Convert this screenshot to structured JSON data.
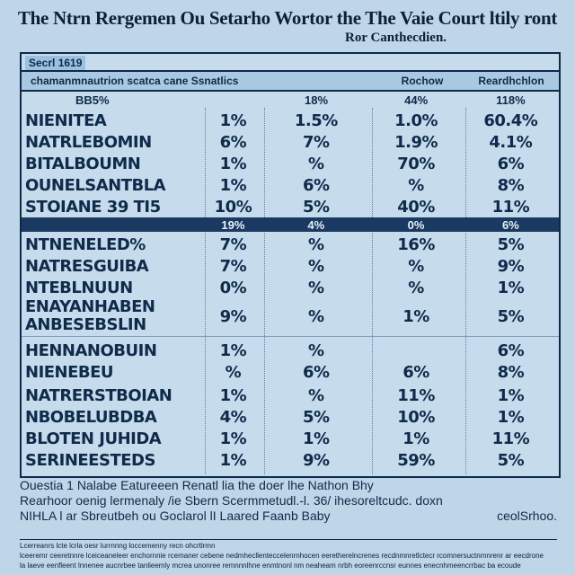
{
  "header": {
    "title": "The Ntrn Rergemen Ou Setarho Wortor the The Vaie Court ltily ront",
    "subtitle": "Ror Canthecdien."
  },
  "table": {
    "tag": "Secrl 1619",
    "columns": [
      "chamanmnautrion scatca cane Ssnatlics",
      "Rochow",
      "Reardhchlon"
    ],
    "subheader": [
      "BB5%",
      "",
      "18%",
      "44%",
      "118%"
    ],
    "rows_top": [
      {
        "label": "NIENITEA",
        "v1": "1%",
        "v2": "1.5%",
        "v3": "1.0%",
        "v4": "60.4%"
      },
      {
        "label": "NATRLEBOMIN",
        "v1": "6%",
        "v2": "7%",
        "v3": "1.9%",
        "v4": "4.1%"
      },
      {
        "label": "BITALBOUMN",
        "v1": "1%",
        "v2": "%",
        "v3": "70%",
        "v4": "6%"
      },
      {
        "label": "OUNELSANTBLA",
        "v1": "1%",
        "v2": "6%",
        "v3": "%",
        "v4": "8%"
      },
      {
        "label": "STOIANE 39 TI5",
        "v1": "10%",
        "v2": "5%",
        "v3": "40%",
        "v4": "11%"
      }
    ],
    "divider": {
      "label": "",
      "v1": "19%",
      "v2": "4%",
      "v3": "0%",
      "v4": "6%"
    },
    "rows_mid": [
      {
        "label": "NTNENELED%",
        "v1": "7%",
        "v2": "%",
        "v3": "16%",
        "v4": "5%"
      },
      {
        "label": "NATRESGUIBA",
        "v1": "7%",
        "v2": "%",
        "v3": "%",
        "v4": "9%"
      },
      {
        "label": "NTEBLNUUN",
        "v1": "0%",
        "v2": "%",
        "v3": "%",
        "v4": "1%"
      }
    ],
    "row_tall": {
      "label1": "ENAYANHABEN",
      "label2": "ANBESEBSLIN",
      "v1": "9%",
      "v2": "%",
      "v3": "1%",
      "v4": "5%"
    },
    "rows_bottom": [
      {
        "label": "HENNANOBUIN",
        "v1": "1%",
        "v2": "%",
        "v3": "",
        "v4": "6%"
      },
      {
        "label": "NIENEBEU",
        "v1": "%",
        "v2": "6%",
        "v3": "6%",
        "v4": "8%"
      },
      {
        "label": "NATRERSTBOIAN",
        "v1": "1%",
        "v2": "%",
        "v3": "11%",
        "v4": "1%"
      },
      {
        "label": "NBOBELUBDBA",
        "v1": "4%",
        "v2": "5%",
        "v3": "10%",
        "v4": "1%"
      },
      {
        "label": "BLOTEN JUHIDA",
        "v1": "1%",
        "v2": "1%",
        "v3": "1%",
        "v4": "11%"
      },
      {
        "label": "SERINEESTEDS",
        "v1": "1%",
        "v2": "9%",
        "v3": "59%",
        "v4": "5%"
      }
    ]
  },
  "notes": {
    "line1": "Ouestia 1 Nalabe Eatureeen Renatl lia the doer lhe Nathon Bhy",
    "line2": "Rearhoor oenig lermenaly /ie Sbern Scermmetudl.-l. 36/ ihesoreltcudc. doxn",
    "line3_left": "NIHLA l ar Sbreutbeh ou Goclarol lI Laared Faanb Baby",
    "line3_right": "ceolSrhoo."
  },
  "footer": {
    "lines": [
      "Lcerreanrs lcte lcrla oesr lurrnnng loccemenny recn ohcrtlrmn",
      "lceeremr ceeretnnre lceiceaneleer enchornnie rcemaner cebene nedmhecllenteccelenrnhocen eeretherelncrenes recdnmnretlctecr rcomnersuctnmnrenr ar eecdrone",
      "la laeve eenfleent lnnenee aucnrbee tanlieemly mcrea unonree remnnnlhne enmtnonl nm neaheam nrbh eoreenrccnsr eunnes enecnhmeencrrbac ba ecoude"
    ]
  }
}
